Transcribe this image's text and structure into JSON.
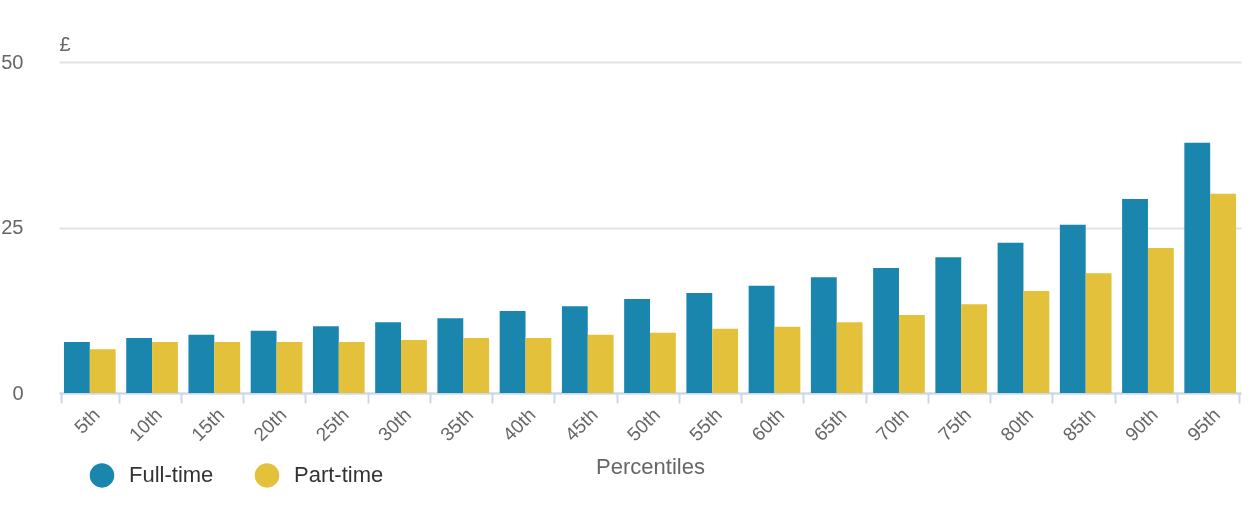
{
  "chart_data": {
    "type": "bar",
    "ylabel": "£",
    "xlabel": "Percentiles",
    "categories": [
      "5th",
      "10th",
      "15th",
      "20th",
      "25th",
      "30th",
      "35th",
      "40th",
      "45th",
      "50th",
      "55th",
      "60th",
      "65th",
      "70th",
      "75th",
      "80th",
      "85th",
      "90th",
      "95th"
    ],
    "series": [
      {
        "name": "Full-time",
        "color": "#1a85ad",
        "values": [
          7.7,
          8.3,
          8.8,
          9.4,
          10.1,
          10.7,
          11.3,
          12.4,
          13.1,
          14.2,
          15.1,
          16.2,
          17.5,
          18.9,
          20.5,
          22.7,
          25.4,
          29.3,
          37.8
        ]
      },
      {
        "name": "Part-time",
        "color": "#e3c13b",
        "values": [
          6.6,
          7.7,
          7.7,
          7.7,
          7.7,
          8.0,
          8.3,
          8.3,
          8.8,
          9.1,
          9.7,
          10.0,
          10.7,
          11.8,
          13.4,
          15.4,
          18.1,
          21.9,
          30.1
        ]
      }
    ],
    "ylim": [
      0,
      50
    ],
    "yticks": [
      0,
      25,
      50
    ],
    "grid": "y",
    "legend": "bottom left"
  }
}
